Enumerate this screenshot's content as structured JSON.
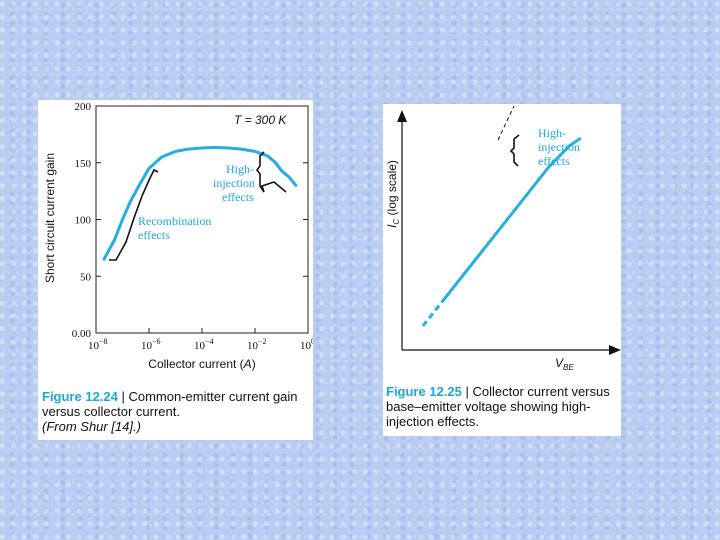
{
  "colors": {
    "curve": "#24aee2",
    "caption_label": "#1aa7dc",
    "background": "#b9cdf2"
  },
  "chart_data": [
    {
      "type": "line",
      "ylabel": "Short circuit current gain",
      "xlabel": "Collector current (A)",
      "xscale": "log",
      "xlim": [
        1e-08,
        1
      ],
      "ylim": [
        0,
        200
      ],
      "yticks": [
        "0.00",
        "50",
        "100",
        "150",
        "200"
      ],
      "xtick_bases": [
        "10",
        "10",
        "10",
        "10",
        "10"
      ],
      "xtick_exps": [
        "−8",
        "−6",
        "−4",
        "−2",
        "0"
      ],
      "condition": "T = 300 K",
      "annotations": [
        "Recombination effects",
        "High-injection effects"
      ],
      "series": [
        {
          "x": [
            2e-08,
            5e-08,
            1e-07,
            2e-07,
            5e-07,
            1e-06,
            3e-06,
            1e-05,
            3e-05,
            0.0001,
            0.0003,
            0.001,
            0.003,
            0.01,
            0.03,
            0.06,
            0.1,
            0.2,
            0.35
          ],
          "y": [
            65,
            82,
            100,
            116,
            133,
            145,
            155,
            160,
            162,
            163,
            163.5,
            163,
            162,
            160,
            156,
            150,
            143,
            137,
            130
          ]
        }
      ],
      "caption": {
        "label": "Figure 12.24",
        "text": " | Common-emitter current gain versus collector current.",
        "source": "(From Shur [14].)"
      }
    },
    {
      "type": "line",
      "ylabel_main": "I",
      "ylabel_sub": "C",
      "ylabel_rest": " (log scale)",
      "xlabel_main": "V",
      "xlabel_sub": "BE",
      "annotations": [
        "High-injection effects"
      ],
      "series": [
        {
          "x": [
            0.1,
            0.2,
            0.3,
            0.4,
            0.5,
            0.6,
            0.7,
            0.8,
            0.85
          ],
          "y": [
            0.1,
            0.21,
            0.32,
            0.43,
            0.54,
            0.65,
            0.76,
            0.85,
            0.88
          ]
        }
      ],
      "caption": {
        "label": "Figure 12.25",
        "text": " | Collector current versus base–emitter voltage showing high-injection effects."
      }
    }
  ],
  "left": {
    "ytick_labels": [
      "0.00",
      "50",
      "100",
      "150",
      "200"
    ],
    "xtick_bases": [
      "10",
      "10",
      "10",
      "10",
      "10"
    ],
    "xtick_exps": [
      "−8",
      "−6",
      "−4",
      "−2",
      "0"
    ],
    "temp_label": "T = 300 K",
    "recomb_line1": "Recombination",
    "recomb_line2": "effects",
    "hi_line1": "High-",
    "hi_line2": "injection",
    "hi_line3": "effects"
  },
  "right": {
    "hi_line1": "High-",
    "hi_line2": "injection",
    "hi_line3": "effects"
  }
}
